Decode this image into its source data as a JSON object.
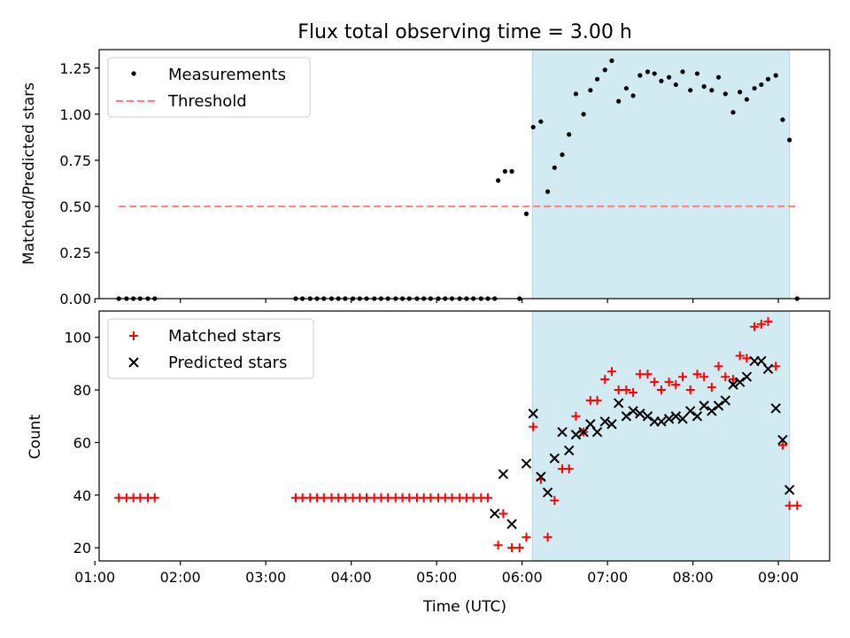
{
  "chart_data": [
    {
      "type": "scatter",
      "title": "Flux total observing time = 3.00 h",
      "ylabel": "Matched/Predicted stars",
      "xlabel": "",
      "xlim": [
        1.05,
        9.6
      ],
      "ylim": [
        0,
        1.35
      ],
      "yticks": [
        "0.00",
        "0.25",
        "0.50",
        "0.75",
        "1.00",
        "1.25"
      ],
      "shaded_span": {
        "start": 6.12,
        "end": 9.13,
        "color": "#add8e6"
      },
      "legend": "top-left",
      "series": [
        {
          "name": "Measurements",
          "marker": "dot",
          "color": "#000000",
          "x": [
            1.28,
            1.37,
            1.45,
            1.53,
            1.62,
            1.7,
            3.35,
            3.43,
            3.52,
            3.6,
            3.68,
            3.77,
            3.85,
            3.93,
            4.02,
            4.1,
            4.18,
            4.27,
            4.35,
            4.43,
            4.52,
            4.6,
            4.68,
            4.77,
            4.85,
            4.93,
            5.02,
            5.1,
            5.18,
            5.27,
            5.35,
            5.43,
            5.52,
            5.6,
            5.68,
            5.72,
            5.8,
            5.88,
            5.97,
            6.05,
            6.13,
            6.22,
            6.3,
            6.38,
            6.47,
            6.55,
            6.63,
            6.72,
            6.8,
            6.88,
            6.97,
            7.05,
            7.13,
            7.22,
            7.3,
            7.38,
            7.47,
            7.55,
            7.63,
            7.72,
            7.8,
            7.88,
            7.97,
            8.05,
            8.13,
            8.22,
            8.3,
            8.38,
            8.47,
            8.55,
            8.63,
            8.72,
            8.8,
            8.88,
            8.97,
            9.05,
            9.13,
            9.22
          ],
          "y": [
            0,
            0,
            0,
            0,
            0,
            0,
            0,
            0,
            0,
            0,
            0,
            0,
            0,
            0,
            0,
            0,
            0,
            0,
            0,
            0,
            0,
            0,
            0,
            0,
            0,
            0,
            0,
            0,
            0,
            0,
            0,
            0,
            0,
            0,
            0,
            0.64,
            0.69,
            0.69,
            0,
            0.46,
            0.93,
            0.96,
            0.58,
            0.71,
            0.78,
            0.89,
            1.11,
            1.0,
            1.13,
            1.19,
            1.24,
            1.29,
            1.07,
            1.14,
            1.1,
            1.21,
            1.23,
            1.22,
            1.18,
            1.2,
            1.16,
            1.23,
            1.13,
            1.22,
            1.15,
            1.13,
            1.2,
            1.11,
            1.01,
            1.12,
            1.08,
            1.14,
            1.16,
            1.19,
            1.21,
            0.97,
            0.86,
            0
          ]
        },
        {
          "name": "Threshold",
          "marker": "dashed-line",
          "color": "#ff7f7f",
          "x": [
            1.28,
            9.22
          ],
          "y": [
            0.5,
            0.5
          ]
        }
      ]
    },
    {
      "type": "scatter",
      "title": "",
      "ylabel": "Count",
      "xlabel": "Time (UTC)",
      "xlim": [
        1.05,
        9.6
      ],
      "ylim": [
        15,
        110
      ],
      "yticks": [
        "20",
        "40",
        "60",
        "80",
        "100"
      ],
      "xticks": [
        "01:00",
        "02:00",
        "03:00",
        "04:00",
        "05:00",
        "06:00",
        "07:00",
        "08:00",
        "09:00"
      ],
      "shaded_span": {
        "start": 6.12,
        "end": 9.13,
        "color": "#add8e6"
      },
      "legend": "top-left",
      "series": [
        {
          "name": "Matched stars",
          "marker": "plus",
          "color": "#ff0000",
          "x": [
            1.28,
            1.37,
            1.45,
            1.53,
            1.62,
            1.7,
            3.35,
            3.43,
            3.52,
            3.6,
            3.68,
            3.77,
            3.85,
            3.93,
            4.02,
            4.1,
            4.18,
            4.27,
            4.35,
            4.43,
            4.52,
            4.6,
            4.68,
            4.77,
            4.85,
            4.93,
            5.02,
            5.1,
            5.18,
            5.27,
            5.35,
            5.43,
            5.52,
            5.6,
            5.72,
            5.78,
            5.88,
            5.97,
            6.05,
            6.13,
            6.22,
            6.3,
            6.38,
            6.47,
            6.55,
            6.63,
            6.72,
            6.8,
            6.88,
            6.97,
            7.05,
            7.13,
            7.22,
            7.3,
            7.38,
            7.47,
            7.55,
            7.63,
            7.72,
            7.8,
            7.88,
            7.97,
            8.05,
            8.13,
            8.22,
            8.3,
            8.38,
            8.47,
            8.55,
            8.63,
            8.72,
            8.8,
            8.88,
            8.97,
            9.05,
            9.13,
            9.22
          ],
          "y": [
            39,
            39,
            39,
            39,
            39,
            39,
            39,
            39,
            39,
            39,
            39,
            39,
            39,
            39,
            39,
            39,
            39,
            39,
            39,
            39,
            39,
            39,
            39,
            39,
            39,
            39,
            39,
            39,
            39,
            39,
            39,
            39,
            39,
            39,
            21,
            33,
            20,
            20,
            24,
            66,
            46,
            24,
            38,
            50,
            50,
            70,
            64,
            76,
            76,
            84,
            87,
            80,
            80,
            79,
            86,
            86,
            83,
            80,
            83,
            82,
            85,
            80,
            86,
            85,
            81,
            89,
            85,
            84,
            93,
            92,
            104,
            105,
            106,
            89,
            59,
            36,
            36
          ]
        },
        {
          "name": "Predicted stars",
          "marker": "x",
          "color": "#000000",
          "x": [
            5.68,
            5.78,
            5.88,
            6.05,
            6.13,
            6.22,
            6.3,
            6.38,
            6.47,
            6.55,
            6.63,
            6.72,
            6.8,
            6.88,
            6.97,
            7.05,
            7.13,
            7.22,
            7.3,
            7.38,
            7.47,
            7.55,
            7.63,
            7.72,
            7.8,
            7.88,
            7.97,
            8.05,
            8.13,
            8.22,
            8.3,
            8.38,
            8.47,
            8.55,
            8.63,
            8.72,
            8.8,
            8.88,
            8.97,
            9.05,
            9.13
          ],
          "y": [
            33,
            48,
            29,
            52,
            71,
            47,
            41,
            54,
            64,
            57,
            63,
            64,
            67,
            64,
            68,
            67,
            75,
            70,
            72,
            71,
            70,
            68,
            68,
            69,
            70,
            69,
            72,
            70,
            74,
            72,
            74,
            76,
            82,
            83,
            85,
            91,
            91,
            88,
            73,
            61,
            42
          ]
        }
      ]
    }
  ]
}
